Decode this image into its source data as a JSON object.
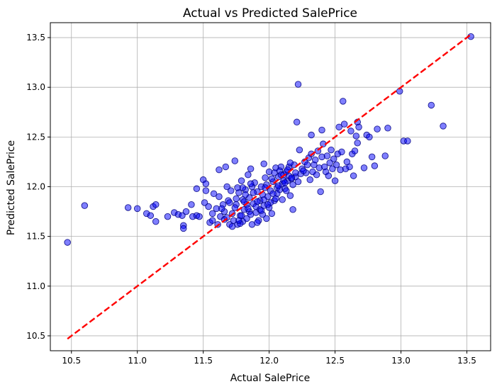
{
  "chart_data": {
    "type": "scatter",
    "title": "Actual vs Predicted SalePrice",
    "xlabel": "Actual SalePrice",
    "ylabel": "Predicted SalePrice",
    "xlim": [
      10.34,
      13.68
    ],
    "ylim": [
      10.35,
      13.65
    ],
    "xticks": [
      10.5,
      11.0,
      11.5,
      12.0,
      12.5,
      13.0,
      13.5
    ],
    "yticks": [
      10.5,
      11.0,
      11.5,
      12.0,
      12.5,
      13.0,
      13.5
    ],
    "xtick_labels": [
      "10.5",
      "11.0",
      "11.5",
      "12.0",
      "12.5",
      "13.0",
      "13.5"
    ],
    "ytick_labels": [
      "10.5",
      "11.0",
      "11.5",
      "12.0",
      "12.5",
      "13.0",
      "13.5"
    ],
    "grid": true,
    "marker_color": "#0000ff",
    "marker_edge_color": "#000080",
    "reference_line": {
      "x": [
        10.47,
        13.53
      ],
      "y": [
        10.47,
        13.53
      ],
      "style": "dashed",
      "color": "#ff0000"
    },
    "points": [
      [
        10.47,
        11.44
      ],
      [
        10.6,
        11.81
      ],
      [
        10.93,
        11.79
      ],
      [
        11.0,
        11.78
      ],
      [
        11.07,
        11.73
      ],
      [
        11.1,
        11.71
      ],
      [
        11.12,
        11.8
      ],
      [
        11.14,
        11.82
      ],
      [
        11.14,
        11.65
      ],
      [
        11.23,
        11.7
      ],
      [
        11.28,
        11.74
      ],
      [
        11.31,
        11.72
      ],
      [
        11.34,
        11.71
      ],
      [
        11.35,
        11.61
      ],
      [
        11.35,
        11.58
      ],
      [
        11.37,
        11.75
      ],
      [
        11.41,
        11.82
      ],
      [
        11.42,
        11.7
      ],
      [
        11.45,
        11.71
      ],
      [
        11.45,
        11.98
      ],
      [
        11.47,
        11.7
      ],
      [
        11.5,
        12.07
      ],
      [
        11.51,
        11.84
      ],
      [
        11.52,
        12.03
      ],
      [
        11.52,
        11.96
      ],
      [
        11.54,
        11.8
      ],
      [
        11.55,
        11.64
      ],
      [
        11.57,
        11.73
      ],
      [
        11.57,
        11.66
      ],
      [
        11.58,
        11.93
      ],
      [
        11.6,
        11.78
      ],
      [
        11.61,
        11.62
      ],
      [
        11.62,
        12.17
      ],
      [
        11.62,
        11.9
      ],
      [
        11.63,
        11.7
      ],
      [
        11.65,
        11.82
      ],
      [
        11.66,
        11.75
      ],
      [
        11.66,
        11.67
      ],
      [
        11.67,
        12.2
      ],
      [
        11.68,
        12.0
      ],
      [
        11.69,
        11.86
      ],
      [
        11.7,
        11.62
      ],
      [
        11.71,
        11.96
      ],
      [
        11.72,
        11.73
      ],
      [
        11.73,
        11.66
      ],
      [
        11.74,
        12.26
      ],
      [
        11.75,
        11.88
      ],
      [
        11.75,
        11.82
      ],
      [
        11.76,
        11.62
      ],
      [
        11.77,
        11.94
      ],
      [
        11.78,
        11.71
      ],
      [
        11.79,
        12.06
      ],
      [
        11.8,
        11.65
      ],
      [
        11.8,
        11.87
      ],
      [
        11.81,
        11.77
      ],
      [
        11.82,
        11.97
      ],
      [
        11.83,
        11.82
      ],
      [
        11.83,
        11.68
      ],
      [
        11.84,
        12.12
      ],
      [
        11.85,
        11.75
      ],
      [
        11.85,
        11.89
      ],
      [
        11.86,
        12.18
      ],
      [
        11.87,
        11.62
      ],
      [
        11.88,
        11.83
      ],
      [
        11.89,
        12.04
      ],
      [
        11.9,
        11.74
      ],
      [
        11.91,
        11.95
      ],
      [
        11.92,
        11.66
      ],
      [
        11.93,
        11.86
      ],
      [
        11.94,
        12.0
      ],
      [
        11.95,
        11.72
      ],
      [
        11.96,
        12.23
      ],
      [
        11.96,
        11.81
      ],
      [
        11.97,
        12.09
      ],
      [
        11.98,
        11.68
      ],
      [
        11.99,
        11.9
      ],
      [
        12.0,
        12.15
      ],
      [
        12.0,
        11.79
      ],
      [
        12.01,
        11.96
      ],
      [
        12.02,
        11.73
      ],
      [
        12.03,
        12.05
      ],
      [
        12.04,
        11.86
      ],
      [
        12.05,
        12.19
      ],
      [
        12.06,
        11.99
      ],
      [
        12.07,
        12.1
      ],
      [
        12.08,
        11.97
      ],
      [
        12.09,
        12.2
      ],
      [
        12.1,
        12.03
      ],
      [
        12.11,
        12.12
      ],
      [
        12.12,
        11.98
      ],
      [
        12.13,
        12.15
      ],
      [
        12.14,
        12.06
      ],
      [
        12.15,
        12.2
      ],
      [
        12.16,
        11.91
      ],
      [
        12.17,
        12.08
      ],
      [
        12.18,
        11.77
      ],
      [
        12.19,
        12.22
      ],
      [
        12.2,
        12.1
      ],
      [
        12.21,
        12.65
      ],
      [
        12.22,
        13.03
      ],
      [
        12.23,
        12.37
      ],
      [
        12.24,
        12.13
      ],
      [
        12.25,
        12.18
      ],
      [
        12.27,
        12.25
      ],
      [
        12.28,
        12.14
      ],
      [
        12.3,
        12.29
      ],
      [
        12.31,
        12.07
      ],
      [
        12.32,
        12.33
      ],
      [
        12.32,
        12.52
      ],
      [
        12.34,
        12.22
      ],
      [
        12.35,
        12.27
      ],
      [
        12.36,
        12.12
      ],
      [
        12.37,
        12.36
      ],
      [
        12.38,
        12.19
      ],
      [
        12.39,
        11.95
      ],
      [
        12.4,
        12.3
      ],
      [
        12.4,
        12.57
      ],
      [
        12.41,
        12.43
      ],
      [
        12.42,
        12.2
      ],
      [
        12.43,
        12.15
      ],
      [
        12.44,
        12.31
      ],
      [
        12.45,
        12.11
      ],
      [
        12.46,
        12.24
      ],
      [
        12.47,
        12.37
      ],
      [
        12.48,
        12.18
      ],
      [
        12.49,
        12.28
      ],
      [
        12.5,
        12.06
      ],
      [
        12.51,
        12.22
      ],
      [
        12.52,
        12.33
      ],
      [
        12.53,
        12.6
      ],
      [
        12.54,
        12.17
      ],
      [
        12.55,
        12.35
      ],
      [
        12.56,
        12.86
      ],
      [
        12.57,
        12.63
      ],
      [
        12.58,
        12.18
      ],
      [
        12.59,
        12.25
      ],
      [
        12.61,
        12.2
      ],
      [
        12.62,
        12.56
      ],
      [
        12.63,
        12.33
      ],
      [
        12.64,
        12.11
      ],
      [
        12.65,
        12.36
      ],
      [
        12.66,
        12.51
      ],
      [
        12.67,
        12.44
      ],
      [
        12.67,
        12.65
      ],
      [
        12.68,
        12.6
      ],
      [
        12.72,
        12.19
      ],
      [
        12.74,
        12.52
      ],
      [
        12.76,
        12.5
      ],
      [
        12.78,
        12.3
      ],
      [
        12.8,
        12.21
      ],
      [
        12.82,
        12.58
      ],
      [
        12.88,
        12.31
      ],
      [
        12.9,
        12.59
      ],
      [
        12.99,
        12.96
      ],
      [
        13.02,
        12.46
      ],
      [
        13.05,
        12.46
      ],
      [
        13.23,
        12.82
      ],
      [
        13.32,
        12.61
      ],
      [
        13.53,
        13.51
      ],
      [
        11.72,
        11.6
      ],
      [
        11.78,
        11.63
      ],
      [
        11.81,
        11.85
      ],
      [
        11.84,
        11.78
      ],
      [
        11.87,
        12.0
      ],
      [
        11.9,
        11.8
      ],
      [
        11.93,
        11.77
      ],
      [
        11.96,
        11.87
      ],
      [
        11.98,
        12.02
      ],
      [
        12.01,
        11.84
      ],
      [
        12.04,
        12.14
      ],
      [
        12.06,
        11.93
      ],
      [
        12.08,
        12.16
      ],
      [
        12.11,
        12.06
      ],
      [
        12.13,
        11.96
      ],
      [
        12.15,
        12.11
      ],
      [
        12.18,
        12.02
      ],
      [
        12.2,
        12.14
      ],
      [
        12.22,
        12.05
      ],
      [
        11.68,
        11.69
      ],
      [
        11.74,
        11.79
      ],
      [
        11.76,
        11.99
      ],
      [
        11.79,
        11.71
      ],
      [
        11.82,
        11.92
      ],
      [
        11.86,
        11.72
      ],
      [
        11.88,
        11.94
      ],
      [
        11.91,
        11.85
      ],
      [
        11.94,
        11.76
      ],
      [
        11.97,
        11.99
      ],
      [
        11.99,
        11.82
      ],
      [
        12.02,
        12.08
      ],
      [
        12.05,
        11.88
      ],
      [
        12.07,
        12.01
      ],
      [
        12.09,
        12.12
      ],
      [
        12.12,
        12.04
      ],
      [
        12.14,
        12.17
      ],
      [
        12.17,
        12.09
      ],
      [
        12.26,
        12.16
      ],
      [
        12.29,
        12.22
      ],
      [
        12.33,
        12.15
      ],
      [
        11.64,
        11.78
      ],
      [
        11.7,
        11.84
      ],
      [
        11.77,
        11.66
      ],
      [
        11.8,
        11.99
      ],
      [
        11.86,
        12.03
      ],
      [
        11.91,
        11.64
      ],
      [
        11.95,
        11.92
      ],
      [
        12.03,
        11.93
      ],
      [
        12.1,
        11.87
      ],
      [
        12.16,
        12.24
      ]
    ]
  }
}
